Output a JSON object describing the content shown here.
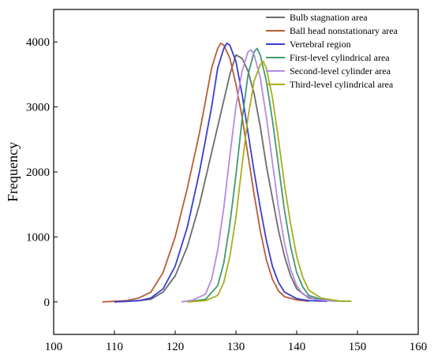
{
  "chart_data": {
    "type": "line",
    "ylabel": "Frequency",
    "xlabel": "",
    "title": "",
    "xlim": [
      100,
      160
    ],
    "ylim": [
      -500,
      4500
    ],
    "xticks": [
      100,
      110,
      120,
      130,
      140,
      150,
      160
    ],
    "yticks": [
      0,
      1000,
      2000,
      3000,
      4000
    ],
    "legend_position": "top-right",
    "grid": false,
    "series": [
      {
        "name": "Bulb stagnation area",
        "color": "#6b6b6b",
        "points": [
          [
            110,
            0
          ],
          [
            114,
            20
          ],
          [
            116,
            40
          ],
          [
            118,
            150
          ],
          [
            120,
            400
          ],
          [
            122,
            850
          ],
          [
            124,
            1500
          ],
          [
            126,
            2300
          ],
          [
            128,
            3100
          ],
          [
            129,
            3500
          ],
          [
            130,
            3800
          ],
          [
            131,
            3750
          ],
          [
            132,
            3550
          ],
          [
            133,
            3200
          ],
          [
            134,
            2700
          ],
          [
            135,
            2100
          ],
          [
            136,
            1600
          ],
          [
            137,
            1100
          ],
          [
            138,
            700
          ],
          [
            139,
            400
          ],
          [
            140,
            200
          ],
          [
            142,
            60
          ],
          [
            145,
            20
          ],
          [
            148,
            10
          ]
        ]
      },
      {
        "name": "Ball head nonstationary area",
        "color": "#b85c38",
        "points": [
          [
            108,
            0
          ],
          [
            112,
            20
          ],
          [
            114,
            60
          ],
          [
            116,
            150
          ],
          [
            118,
            450
          ],
          [
            120,
            1000
          ],
          [
            122,
            1750
          ],
          [
            124,
            2600
          ],
          [
            125,
            3100
          ],
          [
            126,
            3600
          ],
          [
            127,
            3900
          ],
          [
            127.5,
            3980
          ],
          [
            128,
            3950
          ],
          [
            129,
            3750
          ],
          [
            130,
            3350
          ],
          [
            131,
            2850
          ],
          [
            132,
            2250
          ],
          [
            133,
            1650
          ],
          [
            134,
            1100
          ],
          [
            135,
            650
          ],
          [
            136,
            350
          ],
          [
            137,
            170
          ],
          [
            138,
            80
          ],
          [
            140,
            30
          ],
          [
            142,
            10
          ]
        ]
      },
      {
        "name": "Vertebral region",
        "color": "#3a3ed0",
        "points": [
          [
            110,
            0
          ],
          [
            114,
            20
          ],
          [
            116,
            60
          ],
          [
            118,
            200
          ],
          [
            120,
            550
          ],
          [
            122,
            1150
          ],
          [
            124,
            2000
          ],
          [
            125,
            2500
          ],
          [
            126,
            3000
          ],
          [
            127,
            3600
          ],
          [
            128,
            3900
          ],
          [
            128.5,
            3980
          ],
          [
            129,
            3950
          ],
          [
            130,
            3700
          ],
          [
            131,
            3200
          ],
          [
            132,
            2600
          ],
          [
            133,
            2000
          ],
          [
            134,
            1450
          ],
          [
            135,
            950
          ],
          [
            136,
            550
          ],
          [
            137,
            300
          ],
          [
            138,
            150
          ],
          [
            140,
            50
          ],
          [
            142,
            20
          ],
          [
            145,
            10
          ]
        ]
      },
      {
        "name": "First-level cylindrical area",
        "color": "#3f9a6e",
        "points": [
          [
            122,
            0
          ],
          [
            125,
            40
          ],
          [
            127,
            250
          ],
          [
            128,
            600
          ],
          [
            129,
            1200
          ],
          [
            130,
            1950
          ],
          [
            131,
            2800
          ],
          [
            132,
            3500
          ],
          [
            133,
            3850
          ],
          [
            133.5,
            3900
          ],
          [
            134,
            3800
          ],
          [
            135,
            3400
          ],
          [
            136,
            2800
          ],
          [
            137,
            2100
          ],
          [
            138,
            1400
          ],
          [
            139,
            850
          ],
          [
            140,
            450
          ],
          [
            141,
            230
          ],
          [
            142,
            100
          ],
          [
            144,
            40
          ],
          [
            147,
            15
          ],
          [
            149,
            10
          ]
        ]
      },
      {
        "name": "Second-level cylinder area",
        "color": "#b58be0",
        "points": [
          [
            121,
            0
          ],
          [
            123,
            30
          ],
          [
            125,
            120
          ],
          [
            126,
            350
          ],
          [
            127,
            800
          ],
          [
            128,
            1450
          ],
          [
            129,
            2250
          ],
          [
            130,
            3000
          ],
          [
            131,
            3550
          ],
          [
            132,
            3850
          ],
          [
            132.5,
            3880
          ],
          [
            133,
            3800
          ],
          [
            134,
            3450
          ],
          [
            135,
            2850
          ],
          [
            136,
            2150
          ],
          [
            137,
            1450
          ],
          [
            138,
            900
          ],
          [
            139,
            500
          ],
          [
            140,
            250
          ],
          [
            141,
            120
          ],
          [
            143,
            40
          ],
          [
            146,
            10
          ]
        ]
      },
      {
        "name": "Third-level cylindrical area",
        "color": "#a8ad1e",
        "points": [
          [
            122,
            0
          ],
          [
            125,
            20
          ],
          [
            127,
            100
          ],
          [
            128,
            300
          ],
          [
            129,
            700
          ],
          [
            130,
            1300
          ],
          [
            131,
            2100
          ],
          [
            132,
            2850
          ],
          [
            133,
            3400
          ],
          [
            134,
            3650
          ],
          [
            134.5,
            3700
          ],
          [
            135,
            3600
          ],
          [
            136,
            3150
          ],
          [
            137,
            2500
          ],
          [
            138,
            1800
          ],
          [
            139,
            1200
          ],
          [
            140,
            700
          ],
          [
            141,
            380
          ],
          [
            142,
            180
          ],
          [
            144,
            60
          ],
          [
            147,
            15
          ],
          [
            149,
            10
          ]
        ]
      }
    ]
  }
}
